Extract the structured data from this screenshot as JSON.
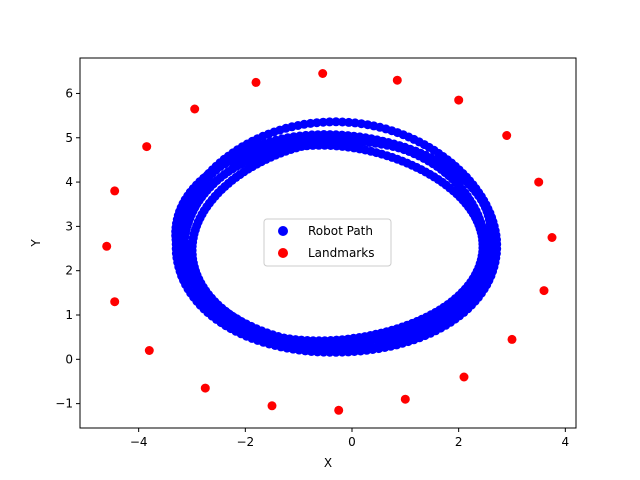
{
  "chart_data": {
    "type": "scatter",
    "title": "",
    "xlabel": "X",
    "ylabel": "Y",
    "xlim": [
      -5.1,
      4.2
    ],
    "ylim": [
      -1.55,
      6.8
    ],
    "xticks": [
      -4,
      -2,
      0,
      2,
      4
    ],
    "yticks": [
      -1,
      0,
      1,
      2,
      3,
      4,
      5,
      6
    ],
    "xtick_labels": [
      "−4",
      "−2",
      "0",
      "2",
      "4"
    ],
    "ytick_labels": [
      "−1",
      "0",
      "1",
      "2",
      "3",
      "4",
      "5",
      "6"
    ],
    "grid": false,
    "legend_position": "center",
    "series": [
      {
        "name": "Robot Path",
        "color": "#0000ff",
        "path_model": {
          "laps": [
            {
              "cx": -0.35,
              "cy": 2.7,
              "rx": 2.95,
              "ry": 2.3
            },
            {
              "cx": -0.3,
              "cy": 2.65,
              "rx": 2.9,
              "ry": 2.45
            },
            {
              "cx": -0.4,
              "cy": 2.6,
              "rx": 2.8,
              "ry": 2.2
            },
            {
              "cx": -0.3,
              "cy": 2.7,
              "rx": 3.0,
              "ry": 2.6
            },
            {
              "cx": -0.2,
              "cy": 2.55,
              "rx": 2.75,
              "ry": 2.35
            }
          ],
          "points_per_lap": 160
        }
      },
      {
        "name": "Landmarks",
        "color": "#ff0000",
        "x": [
          -4.6,
          -4.45,
          -4.45,
          -3.85,
          -3.8,
          -2.95,
          -2.75,
          -1.8,
          -1.5,
          -0.55,
          -0.25,
          0.85,
          1.0,
          2.0,
          2.1,
          2.9,
          3.0,
          3.5,
          3.6,
          3.75
        ],
        "y": [
          2.55,
          3.8,
          1.3,
          4.8,
          0.2,
          5.65,
          -0.65,
          6.25,
          -1.05,
          6.45,
          -1.15,
          6.3,
          -0.9,
          5.85,
          -0.4,
          5.05,
          0.45,
          4.0,
          1.55,
          2.75
        ]
      }
    ]
  }
}
